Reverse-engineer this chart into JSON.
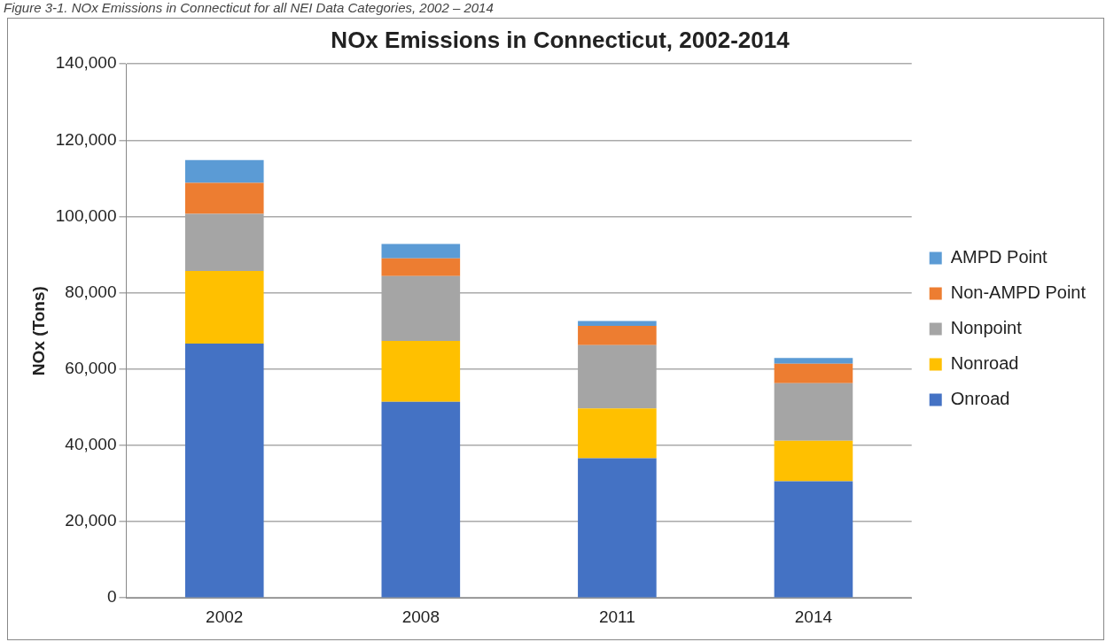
{
  "chart_data": {
    "type": "bar",
    "stacked": true,
    "title": "NOx Emissions in Connecticut, 2002-2014",
    "ylabel": "NOx (Tons)",
    "annotations": [
      "Figure 3-1. NOx Emissions in Connecticut for all NEI Data Categories, 2002 – 2014"
    ],
    "categories": [
      "2002",
      "2008",
      "2011",
      "2014"
    ],
    "series": [
      {
        "name": "Onroad",
        "color": "#4472c4",
        "values": [
          66700,
          51400,
          36600,
          30600
        ]
      },
      {
        "name": "Nonroad",
        "color": "#ffc000",
        "values": [
          19000,
          16000,
          13100,
          10600
        ]
      },
      {
        "name": "Nonpoint",
        "color": "#a5a5a5",
        "values": [
          15000,
          17000,
          16600,
          15100
        ]
      },
      {
        "name": "Non-AMPD Point",
        "color": "#ed7d31",
        "values": [
          8100,
          4600,
          5000,
          5100
        ]
      },
      {
        "name": "AMPD Point",
        "color": "#5b9bd5",
        "values": [
          6000,
          3800,
          1300,
          1500
        ]
      }
    ],
    "ylim": [
      0,
      140000
    ],
    "yticks": [
      {
        "value": 0,
        "label": "0"
      },
      {
        "value": 20000,
        "label": "20,000"
      },
      {
        "value": 40000,
        "label": "40,000"
      },
      {
        "value": 60000,
        "label": "60,000"
      },
      {
        "value": 80000,
        "label": "80,000"
      },
      {
        "value": 100000,
        "label": "100,000"
      },
      {
        "value": 120000,
        "label": "120,000"
      },
      {
        "value": 140000,
        "label": "140,000"
      }
    ],
    "grid": "y",
    "legend": "right"
  }
}
